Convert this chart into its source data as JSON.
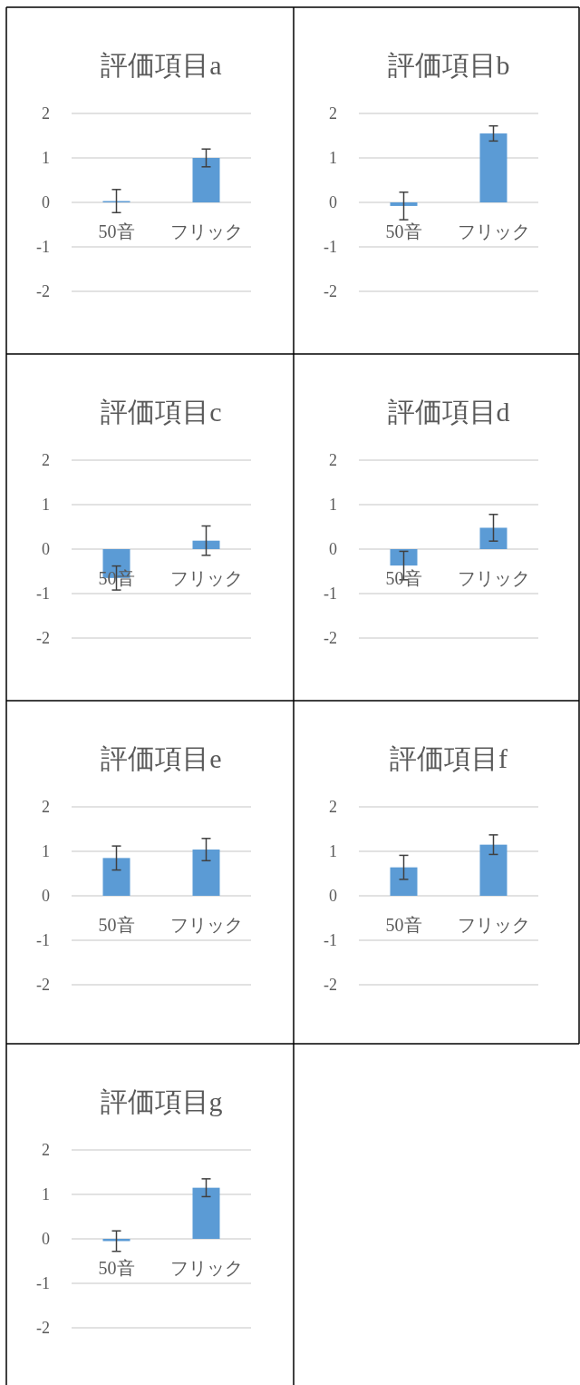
{
  "chart_data": [
    {
      "type": "bar",
      "title": "評価項目a",
      "categories": [
        "50音",
        "フリック"
      ],
      "values": [
        0.03,
        1.0
      ],
      "errors": [
        0.26,
        0.2
      ],
      "color": "#5b9bd5",
      "ylim": [
        -2,
        2
      ],
      "yticks": [
        -2,
        -1,
        0,
        1,
        2
      ],
      "grid": "y"
    },
    {
      "type": "bar",
      "title": "評価項目b",
      "categories": [
        "50音",
        "フリック"
      ],
      "values": [
        -0.08,
        1.55
      ],
      "errors": [
        0.31,
        0.17
      ],
      "color": "#5b9bd5",
      "ylim": [
        -2,
        2
      ],
      "yticks": [
        -2,
        -1,
        0,
        1,
        2
      ],
      "grid": "y"
    },
    {
      "type": "bar",
      "title": "評価項目c",
      "categories": [
        "50音",
        "フリック"
      ],
      "values": [
        -0.65,
        0.19
      ],
      "errors": [
        0.27,
        0.33
      ],
      "color": "#5b9bd5",
      "ylim": [
        -2,
        2
      ],
      "yticks": [
        -2,
        -1,
        0,
        1,
        2
      ],
      "grid": "y"
    },
    {
      "type": "bar",
      "title": "評価項目d",
      "categories": [
        "50音",
        "フリック"
      ],
      "values": [
        -0.37,
        0.48
      ],
      "errors": [
        0.32,
        0.3
      ],
      "color": "#5b9bd5",
      "ylim": [
        -2,
        2
      ],
      "yticks": [
        -2,
        -1,
        0,
        1,
        2
      ],
      "grid": "y"
    },
    {
      "type": "bar",
      "title": "評価項目e",
      "categories": [
        "50音",
        "フリック"
      ],
      "values": [
        0.85,
        1.04
      ],
      "errors": [
        0.27,
        0.25
      ],
      "color": "#5b9bd5",
      "ylim": [
        -2,
        2
      ],
      "yticks": [
        -2,
        -1,
        0,
        1,
        2
      ],
      "grid": "y"
    },
    {
      "type": "bar",
      "title": "評価項目f",
      "categories": [
        "50音",
        "フリック"
      ],
      "values": [
        0.64,
        1.15
      ],
      "errors": [
        0.27,
        0.22
      ],
      "color": "#5b9bd5",
      "ylim": [
        -2,
        2
      ],
      "yticks": [
        -2,
        -1,
        0,
        1,
        2
      ],
      "grid": "y"
    },
    {
      "type": "bar",
      "title": "評価項目g",
      "categories": [
        "50音",
        "フリック"
      ],
      "values": [
        -0.05,
        1.15
      ],
      "errors": [
        0.23,
        0.2
      ],
      "color": "#5b9bd5",
      "ylim": [
        -2,
        2
      ],
      "yticks": [
        -2,
        -1,
        0,
        1,
        2
      ],
      "grid": "y"
    }
  ]
}
